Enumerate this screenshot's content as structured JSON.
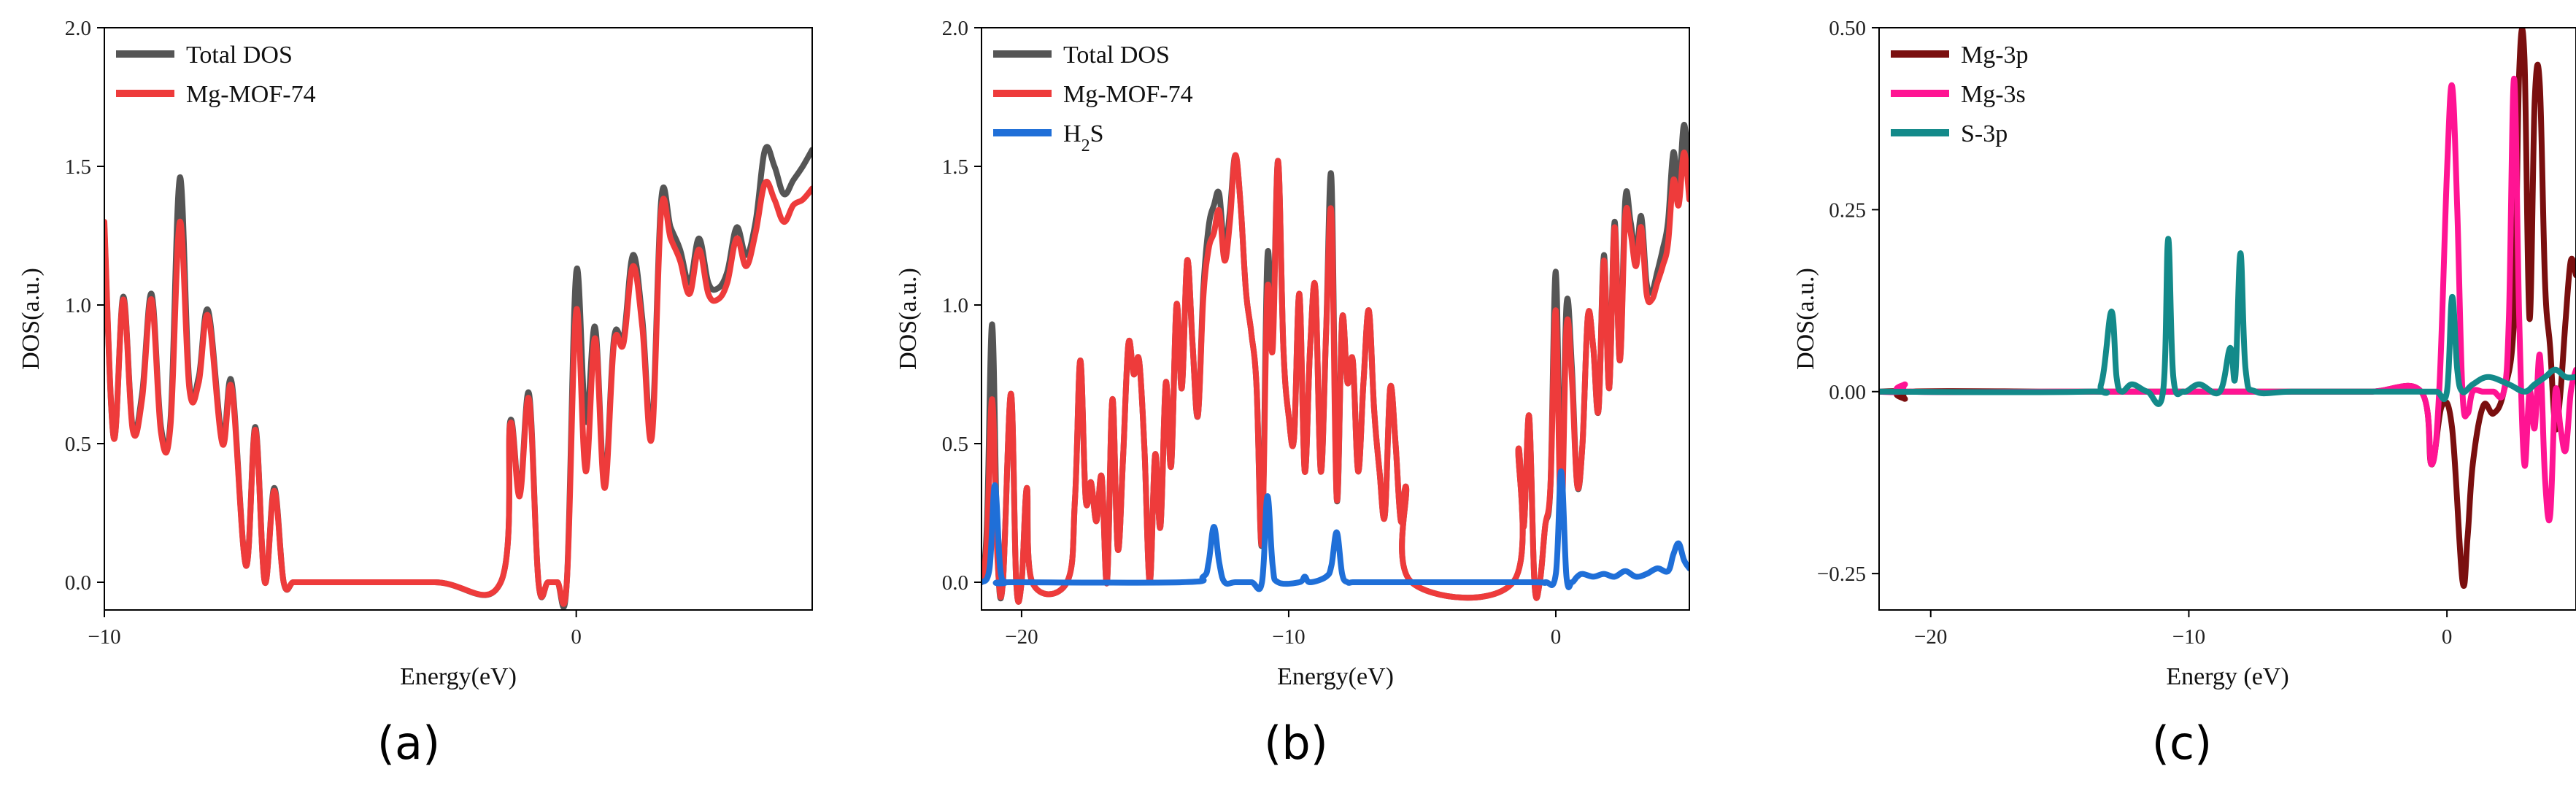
{
  "chart_data": [
    {
      "panel": "(a)",
      "type": "line",
      "xlabel": "Energy(eV)",
      "ylabel": "DOS(a.u.)",
      "xlim": [
        -10,
        5
      ],
      "ylim": [
        -0.1,
        2.0
      ],
      "xticks": [
        -10,
        0
      ],
      "yticks": [
        "0.0",
        "0.5",
        "1.0",
        "1.5",
        "2.0"
      ],
      "legend_position": "top-left",
      "series": [
        {
          "name": "Total DOS",
          "color": "#555555",
          "x": [
            -10,
            -9.8,
            -9.6,
            -9.4,
            -9.2,
            -9.0,
            -8.8,
            -8.6,
            -8.4,
            -8.2,
            -8.0,
            -7.8,
            -7.5,
            -7.3,
            -7.0,
            -6.8,
            -6.6,
            -6.4,
            -6.2,
            -6.0,
            -5.8,
            -5.6,
            -5.4,
            -5.2,
            -3.0,
            -1.6,
            -1.4,
            -1.2,
            -1.0,
            -0.8,
            -0.6,
            -0.4,
            -0.2,
            0.0,
            0.2,
            0.4,
            0.6,
            0.8,
            1.0,
            1.2,
            1.4,
            1.6,
            1.8,
            2.0,
            2.2,
            2.4,
            2.6,
            2.8,
            3.0,
            3.2,
            3.4,
            3.6,
            3.8,
            4.0,
            4.2,
            4.4,
            4.6,
            4.8,
            5.0
          ],
          "y": [
            1.28,
            0.52,
            1.03,
            0.56,
            0.68,
            1.04,
            0.56,
            0.58,
            1.46,
            0.72,
            0.74,
            0.98,
            0.52,
            0.72,
            0.06,
            0.56,
            0.0,
            0.34,
            0.0,
            0.0,
            0.0,
            0.0,
            0.0,
            0.0,
            0.0,
            0.0,
            0.58,
            0.32,
            0.68,
            0.0,
            0.0,
            0.0,
            0.0,
            1.12,
            0.58,
            0.92,
            0.36,
            0.88,
            0.88,
            1.18,
            0.95,
            0.55,
            1.38,
            1.28,
            1.2,
            1.08,
            1.24,
            1.08,
            1.06,
            1.12,
            1.28,
            1.18,
            1.3,
            1.56,
            1.5,
            1.4,
            1.45,
            1.5,
            1.56
          ]
        },
        {
          "name": "Mg-MOF-74",
          "color": "#ee3b3b",
          "x": [
            -10,
            -9.8,
            -9.6,
            -9.4,
            -9.2,
            -9.0,
            -8.8,
            -8.6,
            -8.4,
            -8.2,
            -8.0,
            -7.8,
            -7.5,
            -7.3,
            -7.0,
            -6.8,
            -6.6,
            -6.4,
            -6.2,
            -6.0,
            -5.8,
            -5.6,
            -5.4,
            -5.2,
            -3.0,
            -1.6,
            -1.4,
            -1.2,
            -1.0,
            -0.8,
            -0.6,
            -0.4,
            -0.2,
            0.0,
            0.2,
            0.4,
            0.6,
            0.8,
            1.0,
            1.2,
            1.4,
            1.6,
            1.8,
            2.0,
            2.2,
            2.4,
            2.6,
            2.8,
            3.0,
            3.2,
            3.4,
            3.6,
            3.8,
            4.0,
            4.2,
            4.4,
            4.6,
            4.8,
            5.0
          ],
          "y": [
            1.3,
            0.52,
            1.02,
            0.55,
            0.66,
            1.02,
            0.54,
            0.56,
            1.3,
            0.7,
            0.72,
            0.96,
            0.5,
            0.7,
            0.06,
            0.55,
            0.0,
            0.33,
            0.0,
            0.0,
            0.0,
            0.0,
            0.0,
            0.0,
            0.0,
            0.0,
            0.57,
            0.31,
            0.66,
            0.0,
            0.0,
            0.0,
            0.0,
            0.98,
            0.4,
            0.88,
            0.34,
            0.86,
            0.86,
            1.14,
            0.92,
            0.52,
            1.34,
            1.24,
            1.16,
            1.04,
            1.2,
            1.04,
            1.02,
            1.08,
            1.24,
            1.14,
            1.26,
            1.44,
            1.38,
            1.3,
            1.36,
            1.38,
            1.42
          ]
        }
      ]
    },
    {
      "panel": "(b)",
      "type": "line",
      "xlabel": "Energy(eV)",
      "ylabel": "DOS(a.u.)",
      "xlim": [
        -21.5,
        5
      ],
      "ylim": [
        -0.1,
        2.0
      ],
      "xticks": [
        -20,
        -10,
        0
      ],
      "yticks": [
        "0.0",
        "0.5",
        "1.0",
        "1.5",
        "2.0"
      ],
      "legend_position": "top-left",
      "series": [
        {
          "name": "Total DOS",
          "color": "#555555",
          "x": [
            -21.5,
            -21.3,
            -21.1,
            -20.9,
            -20.7,
            -20.4,
            -20.2,
            -20.0,
            -19.8,
            -19.6,
            -18.3,
            -18.0,
            -17.8,
            -17.6,
            -17.4,
            -17.2,
            -17.0,
            -16.8,
            -16.6,
            -16.4,
            -16.2,
            -16.0,
            -15.8,
            -15.6,
            -15.4,
            -15.2,
            -15.0,
            -14.8,
            -14.6,
            -14.4,
            -14.2,
            -14.0,
            -13.8,
            -13.6,
            -13.4,
            -13.2,
            -13.0,
            -12.8,
            -12.6,
            -12.4,
            -12.2,
            -12.0,
            -11.8,
            -11.6,
            -11.4,
            -11.2,
            -11.0,
            -10.8,
            -10.6,
            -10.4,
            -10.2,
            -10.0,
            -9.8,
            -9.6,
            -9.4,
            -9.2,
            -9.0,
            -8.8,
            -8.6,
            -8.4,
            -8.2,
            -8.0,
            -7.8,
            -7.6,
            -7.4,
            -7.2,
            -7.0,
            -6.8,
            -6.6,
            -6.4,
            -6.2,
            -6.0,
            -5.8,
            -5.6,
            -5.4,
            -1.6,
            -1.4,
            -1.2,
            -1.0,
            -0.8,
            -0.6,
            -0.4,
            -0.2,
            0.0,
            0.2,
            0.4,
            0.6,
            0.8,
            1.0,
            1.2,
            1.4,
            1.6,
            1.8,
            2.0,
            2.2,
            2.4,
            2.6,
            2.8,
            3.0,
            3.2,
            3.4,
            3.6,
            3.8,
            4.0,
            4.2,
            4.4,
            4.6,
            4.8,
            5.0
          ],
          "y": [
            0.0,
            0.2,
            0.93,
            0.1,
            0.0,
            0.68,
            0.0,
            0.0,
            0.34,
            0.0,
            0.0,
            0.3,
            0.8,
            0.3,
            0.36,
            0.22,
            0.38,
            0.0,
            0.66,
            0.12,
            0.45,
            0.86,
            0.75,
            0.8,
            0.48,
            0.0,
            0.46,
            0.2,
            0.72,
            0.42,
            1.0,
            0.7,
            1.16,
            0.86,
            0.6,
            1.05,
            1.28,
            1.36,
            1.4,
            1.2,
            1.34,
            1.54,
            1.36,
            1.05,
            0.9,
            0.7,
            0.14,
            1.17,
            0.9,
            1.52,
            0.85,
            0.6,
            0.52,
            1.04,
            0.4,
            0.84,
            1.06,
            0.4,
            0.9,
            1.46,
            0.3,
            0.95,
            0.72,
            0.8,
            0.4,
            0.72,
            0.98,
            0.62,
            0.4,
            0.24,
            0.7,
            0.5,
            0.22,
            0.34,
            0.0,
            0.0,
            0.48,
            0.2,
            0.6,
            0.0,
            0.0,
            0.2,
            0.35,
            1.12,
            0.28,
            1.0,
            0.78,
            0.35,
            0.5,
            0.96,
            0.85,
            0.62,
            1.18,
            0.7,
            1.3,
            0.8,
            1.38,
            1.3,
            1.18,
            1.32,
            1.08,
            1.05,
            1.12,
            1.2,
            1.3,
            1.55,
            1.42,
            1.65,
            1.45
          ]
        },
        {
          "name": "Mg-MOF-74",
          "color": "#ee3b3b",
          "x": [
            -21.5,
            -21.3,
            -21.1,
            -20.9,
            -20.7,
            -20.4,
            -20.2,
            -20.0,
            -19.8,
            -19.6,
            -18.3,
            -18.0,
            -17.8,
            -17.6,
            -17.4,
            -17.2,
            -17.0,
            -16.8,
            -16.6,
            -16.4,
            -16.2,
            -16.0,
            -15.8,
            -15.6,
            -15.4,
            -15.2,
            -15.0,
            -14.8,
            -14.6,
            -14.4,
            -14.2,
            -14.0,
            -13.8,
            -13.6,
            -13.4,
            -13.2,
            -13.0,
            -12.8,
            -12.6,
            -12.4,
            -12.2,
            -12.0,
            -11.8,
            -11.6,
            -11.4,
            -11.2,
            -11.0,
            -10.8,
            -10.6,
            -10.4,
            -10.2,
            -10.0,
            -9.8,
            -9.6,
            -9.4,
            -9.2,
            -9.0,
            -8.8,
            -8.6,
            -8.4,
            -8.2,
            -8.0,
            -7.8,
            -7.6,
            -7.4,
            -7.2,
            -7.0,
            -6.8,
            -6.6,
            -6.4,
            -6.2,
            -6.0,
            -5.8,
            -5.6,
            -5.4,
            -1.6,
            -1.4,
            -1.2,
            -1.0,
            -0.8,
            -0.6,
            -0.4,
            -0.2,
            0.0,
            0.2,
            0.4,
            0.6,
            0.8,
            1.0,
            1.2,
            1.4,
            1.6,
            1.8,
            2.0,
            2.2,
            2.4,
            2.6,
            2.8,
            3.0,
            3.2,
            3.4,
            3.6,
            3.8,
            4.0,
            4.2,
            4.4,
            4.6,
            4.8,
            5.0
          ],
          "y": [
            0.0,
            0.15,
            0.66,
            0.08,
            0.0,
            0.68,
            0.0,
            0.0,
            0.34,
            0.0,
            0.0,
            0.3,
            0.8,
            0.3,
            0.36,
            0.22,
            0.38,
            0.0,
            0.66,
            0.12,
            0.45,
            0.86,
            0.75,
            0.8,
            0.48,
            0.0,
            0.46,
            0.2,
            0.72,
            0.42,
            1.0,
            0.7,
            1.16,
            0.86,
            0.6,
            1.02,
            1.2,
            1.26,
            1.34,
            1.16,
            1.3,
            1.54,
            1.36,
            1.05,
            0.9,
            0.7,
            0.14,
            1.05,
            0.84,
            1.52,
            0.85,
            0.6,
            0.52,
            1.04,
            0.4,
            0.84,
            1.06,
            0.4,
            0.9,
            1.33,
            0.3,
            0.95,
            0.72,
            0.8,
            0.4,
            0.72,
            0.98,
            0.62,
            0.4,
            0.24,
            0.7,
            0.5,
            0.22,
            0.34,
            0.0,
            0.0,
            0.48,
            0.2,
            0.6,
            0.0,
            0.0,
            0.2,
            0.35,
            0.98,
            0.2,
            0.92,
            0.74,
            0.35,
            0.5,
            0.96,
            0.85,
            0.62,
            1.16,
            0.7,
            1.28,
            0.8,
            1.32,
            1.26,
            1.14,
            1.28,
            1.04,
            1.02,
            1.08,
            1.14,
            1.22,
            1.45,
            1.36,
            1.55,
            1.38
          ]
        },
        {
          "name": "H2S",
          "color": "#1f6fd8",
          "x": [
            -21.5,
            -21.2,
            -21.0,
            -20.8,
            -20.6,
            -20.4,
            -14.0,
            -13.2,
            -13.0,
            -12.8,
            -12.6,
            -12.4,
            -12.0,
            -11.4,
            -11.0,
            -10.8,
            -10.6,
            -10.4,
            -9.6,
            -9.4,
            -9.2,
            -8.6,
            -8.4,
            -8.2,
            -8.0,
            -7.8,
            -7.6,
            -7.0,
            -6.6,
            -6.4,
            -6.0,
            -1.0,
            -0.4,
            0.0,
            0.2,
            0.4,
            0.6,
            0.8,
            1.0,
            1.4,
            1.8,
            2.2,
            2.6,
            3.0,
            3.4,
            3.8,
            4.2,
            4.4,
            4.6,
            4.8,
            5.0
          ],
          "y": [
            0.0,
            0.05,
            0.35,
            0.05,
            0.0,
            0.0,
            0.0,
            0.02,
            0.07,
            0.2,
            0.07,
            0.0,
            0.0,
            0.0,
            0.0,
            0.31,
            0.06,
            0.0,
            0.0,
            0.02,
            0.0,
            0.02,
            0.06,
            0.18,
            0.03,
            0.0,
            0.0,
            0.0,
            0.0,
            0.0,
            0.0,
            0.0,
            0.0,
            0.03,
            0.4,
            0.02,
            0.0,
            0.02,
            0.03,
            0.02,
            0.03,
            0.02,
            0.04,
            0.02,
            0.03,
            0.05,
            0.04,
            0.1,
            0.14,
            0.08,
            0.05
          ]
        }
      ]
    },
    {
      "panel": "(c)",
      "type": "line",
      "xlabel": "Energy (eV)",
      "ylabel": "DOS(a.u.)",
      "xlim": [
        -22,
        5
      ],
      "ylim": [
        -0.3,
        0.5
      ],
      "xticks": [
        -20,
        -10,
        0
      ],
      "yticks": [
        "-0.25",
        "0.00",
        "0.25",
        "0.50"
      ],
      "legend_position": "top-left",
      "series": [
        {
          "name": "Mg-3p",
          "color": "#7a0f0f",
          "x": [
            -22,
            -21.2,
            -21.0,
            -20.8,
            -15,
            -10,
            -8,
            -6,
            -3,
            -1.0,
            -0.6,
            -0.2,
            0.2,
            0.6,
            0.8,
            1.0,
            1.4,
            1.8,
            2.2,
            2.6,
            2.8,
            3.0,
            3.2,
            3.4,
            3.6,
            3.8,
            4.0,
            4.2,
            4.4,
            4.6,
            4.8,
            5.0
          ],
          "y": [
            0.0,
            0.0,
            -0.01,
            0.0,
            0.0,
            0.0,
            0.0,
            0.0,
            0.0,
            0.0,
            -0.1,
            -0.02,
            -0.05,
            -0.26,
            -0.2,
            -0.1,
            -0.02,
            -0.03,
            0.0,
            0.1,
            0.44,
            0.46,
            0.1,
            0.4,
            0.42,
            0.15,
            0.06,
            -0.05,
            0.0,
            0.1,
            0.18,
            0.16
          ]
        },
        {
          "name": "Mg-3s",
          "color": "#ff1493",
          "x": [
            -22,
            -21.2,
            -21.0,
            -20.8,
            -15,
            -10,
            -8,
            -6,
            -3,
            -1.0,
            -0.6,
            -0.3,
            0.0,
            0.2,
            0.4,
            0.6,
            0.8,
            1.0,
            1.4,
            1.8,
            2.2,
            2.4,
            2.6,
            2.8,
            3.0,
            3.2,
            3.4,
            3.6,
            3.8,
            4.0,
            4.2,
            4.4,
            4.6,
            4.8,
            5.0
          ],
          "y": [
            0.0,
            0.0,
            0.01,
            0.0,
            0.0,
            0.0,
            0.0,
            0.0,
            0.0,
            0.0,
            -0.1,
            0.0,
            0.3,
            0.42,
            0.25,
            0.0,
            -0.03,
            0.0,
            0.0,
            0.0,
            0.0,
            0.1,
            0.43,
            0.1,
            -0.1,
            0.0,
            -0.05,
            0.05,
            -0.12,
            -0.17,
            0.0,
            -0.05,
            -0.08,
            0.0,
            0.03
          ]
        },
        {
          "name": "S-3p",
          "color": "#138a8a",
          "x": [
            -22,
            -14,
            -13.4,
            -13.0,
            -12.8,
            -12.6,
            -12.2,
            -11.6,
            -11.0,
            -10.8,
            -10.6,
            -10.2,
            -9.6,
            -8.8,
            -8.4,
            -8.2,
            -8.0,
            -7.8,
            -7.4,
            -6,
            -3,
            -1.0,
            -0.4,
            0.0,
            0.2,
            0.4,
            0.6,
            1.0,
            1.6,
            2.4,
            3.0,
            3.4,
            3.8,
            4.2,
            4.6,
            5.0
          ],
          "y": [
            0.0,
            0.0,
            0.01,
            0.11,
            0.02,
            0.0,
            0.01,
            0.0,
            0.0,
            0.21,
            0.02,
            0.0,
            0.01,
            0.0,
            0.06,
            0.02,
            0.19,
            0.03,
            0.0,
            0.0,
            0.0,
            0.0,
            0.0,
            0.0,
            0.13,
            0.03,
            0.0,
            0.01,
            0.02,
            0.01,
            0.0,
            0.01,
            0.02,
            0.03,
            0.02,
            0.02
          ]
        }
      ]
    }
  ]
}
